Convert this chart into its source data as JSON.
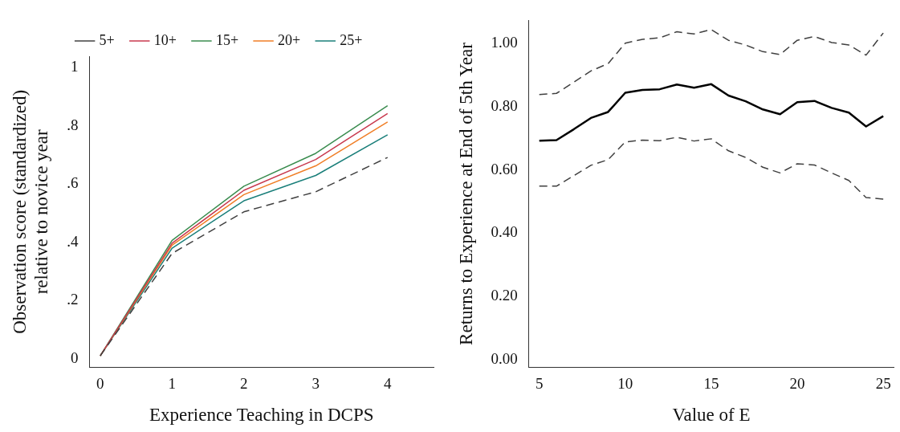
{
  "chart_data": [
    {
      "type": "line",
      "xlabel": "Experience Teaching in DCPS",
      "ylabel": "Observation score (standardized)\nrelative to novice year",
      "x": [
        0,
        1,
        2,
        3,
        4
      ],
      "xlim": [
        -0.15,
        4.64
      ],
      "xticks": [
        0,
        1,
        2,
        3,
        4
      ],
      "ylim": [
        -0.03,
        1.04
      ],
      "yticks": [
        0,
        {
          "value": 0.2,
          "label": ".2"
        },
        {
          "value": 0.4,
          "label": ".4"
        },
        {
          "value": 0.6,
          "label": ".6"
        },
        {
          "value": 0.8,
          "label": ".8"
        },
        1
      ],
      "grid": false,
      "legend": "top",
      "marker": "none",
      "series": [
        {
          "name": "5+",
          "color": "#404040",
          "line_style": "dashed",
          "values": [
            0.01,
            0.362,
            0.505,
            0.574,
            0.692
          ]
        },
        {
          "name": "10+",
          "color": "#c8394e",
          "line_style": "solid",
          "values": [
            0.01,
            0.397,
            0.579,
            0.685,
            0.843
          ]
        },
        {
          "name": "15+",
          "color": "#3a8c4f",
          "line_style": "solid",
          "values": [
            0.01,
            0.407,
            0.593,
            0.706,
            0.87
          ]
        },
        {
          "name": "20+",
          "color": "#f07e26",
          "line_style": "solid",
          "values": [
            0.01,
            0.39,
            0.564,
            0.663,
            0.814
          ]
        },
        {
          "name": "25+",
          "color": "#1a7f7a",
          "line_style": "solid",
          "values": [
            0.01,
            0.38,
            0.543,
            0.63,
            0.77
          ]
        }
      ]
    },
    {
      "type": "line",
      "xlabel": "Value of E",
      "ylabel": "Returns to Experience at End of 5th Year",
      "x": [
        5,
        6,
        7,
        8,
        9,
        10,
        11,
        12,
        13,
        14,
        15,
        16,
        17,
        18,
        19,
        20,
        21,
        22,
        23,
        24,
        25
      ],
      "xlim": [
        4.4,
        25.6
      ],
      "xticks": [
        5,
        10,
        15,
        20,
        25
      ],
      "ylim": [
        -0.025,
        1.074
      ],
      "yticks": [
        {
          "value": 0,
          "label": "0.00"
        },
        {
          "value": 0.2,
          "label": "0.20"
        },
        {
          "value": 0.4,
          "label": "0.40"
        },
        {
          "value": 0.6,
          "label": "0.60"
        },
        {
          "value": 0.8,
          "label": "0.80"
        },
        {
          "value": 1,
          "label": "1.00"
        }
      ],
      "grid": false,
      "legend": false,
      "marker": "none",
      "series": [
        {
          "color": "#000000",
          "line_style": "solid",
          "values": [
            0.693,
            0.695,
            0.729,
            0.765,
            0.784,
            0.845,
            0.854,
            0.856,
            0.871,
            0.861,
            0.872,
            0.836,
            0.818,
            0.792,
            0.777,
            0.815,
            0.819,
            0.797,
            0.782,
            0.738,
            0.771
          ]
        },
        {
          "color": "#404040",
          "line_style": "dashed",
          "values": [
            0.839,
            0.843,
            0.878,
            0.914,
            0.937,
            1.002,
            1.014,
            1.019,
            1.038,
            1.031,
            1.045,
            1.011,
            0.996,
            0.975,
            0.966,
            1.011,
            1.023,
            1.004,
            0.996,
            0.964,
            1.034
          ]
        },
        {
          "color": "#404040",
          "line_style": "dashed",
          "values": [
            0.549,
            0.549,
            0.582,
            0.615,
            0.633,
            0.689,
            0.695,
            0.693,
            0.704,
            0.692,
            0.699,
            0.661,
            0.64,
            0.609,
            0.591,
            0.62,
            0.616,
            0.591,
            0.567,
            0.513,
            0.508
          ]
        }
      ]
    }
  ]
}
